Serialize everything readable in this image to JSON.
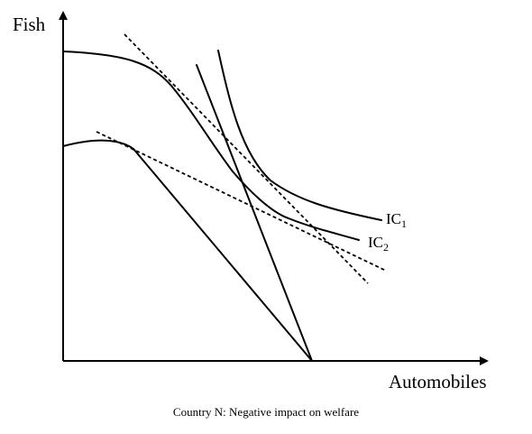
{
  "axes": {
    "y_label": "Fish",
    "x_label": "Automobiles"
  },
  "indifference_curves": {
    "ic1": {
      "base": "IC",
      "sub": "1"
    },
    "ic2": {
      "base": "IC",
      "sub": "2"
    }
  },
  "caption": "Country N: Negative impact on welfare"
}
